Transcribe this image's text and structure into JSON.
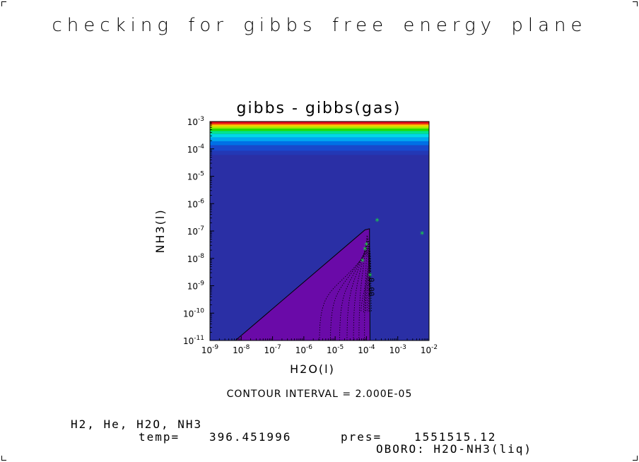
{
  "page": {
    "title": "checking for gibbs free energy plane",
    "contour_interval": "CONTOUR INTERVAL = 2.000E-05",
    "species": "H2, He, H2O, NH3",
    "temp_label": "temp=",
    "temp_value": "396.451996",
    "pres_label": "pres=",
    "pres_value": "1551515.12",
    "source": "OBORO: H2O-NH3(liq)"
  },
  "chart_data": {
    "type": "heatmap",
    "title": "gibbs - gibbs(gas)",
    "xlabel": "H2O(l)",
    "ylabel": "NH3(l)",
    "x_scale": "log",
    "y_scale": "log",
    "xlim": [
      1e-09,
      0.01
    ],
    "ylim": [
      1e-11,
      0.001
    ],
    "x_ticks": [
      {
        "value": 1e-09,
        "mant": "10",
        "exp": "-9"
      },
      {
        "value": 1e-08,
        "mant": "10",
        "exp": "-8"
      },
      {
        "value": 1e-07,
        "mant": "10",
        "exp": "-7"
      },
      {
        "value": 1e-06,
        "mant": "10",
        "exp": "-6"
      },
      {
        "value": 1e-05,
        "mant": "10",
        "exp": "-5"
      },
      {
        "value": 0.0001,
        "mant": "10",
        "exp": "-4"
      },
      {
        "value": 0.001,
        "mant": "10",
        "exp": "-3"
      },
      {
        "value": 0.01,
        "mant": "10",
        "exp": "-2"
      }
    ],
    "y_ticks": [
      {
        "value": 1e-11,
        "mant": "10",
        "exp": "-11"
      },
      {
        "value": 1e-10,
        "mant": "10",
        "exp": "-10"
      },
      {
        "value": 1e-09,
        "mant": "10",
        "exp": "-9"
      },
      {
        "value": 1e-08,
        "mant": "10",
        "exp": "-8"
      },
      {
        "value": 1e-07,
        "mant": "10",
        "exp": "-7"
      },
      {
        "value": 1e-06,
        "mant": "10",
        "exp": "-6"
      },
      {
        "value": 1e-05,
        "mant": "10",
        "exp": "-5"
      },
      {
        "value": 0.0001,
        "mant": "10",
        "exp": "-4"
      },
      {
        "value": 0.001,
        "mant": "10",
        "exp": "-3"
      }
    ],
    "background_color": "#2a2fa5",
    "top_bands": [
      {
        "y_top": 0.001,
        "y_bottom": 0.00083,
        "color": "#e6001a"
      },
      {
        "y_top": 0.00083,
        "y_bottom": 0.00074,
        "color": "#ff7a00"
      },
      {
        "y_top": 0.00074,
        "y_bottom": 0.00066,
        "color": "#ffd800"
      },
      {
        "y_top": 0.00066,
        "y_bottom": 0.00055,
        "color": "#a8e800"
      },
      {
        "y_top": 0.00055,
        "y_bottom": 0.00045,
        "color": "#25e000"
      },
      {
        "y_top": 0.00045,
        "y_bottom": 0.00035,
        "color": "#00e58f"
      },
      {
        "y_top": 0.00035,
        "y_bottom": 0.00026,
        "color": "#00d8e8"
      },
      {
        "y_top": 0.00026,
        "y_bottom": 0.00019,
        "color": "#00a8f0"
      },
      {
        "y_top": 0.00019,
        "y_bottom": 0.000135,
        "color": "#0070e6"
      },
      {
        "y_top": 0.000135,
        "y_bottom": 8.5e-05,
        "color": "#1848cc"
      },
      {
        "y_top": 8.5e-05,
        "y_bottom": 6e-05,
        "color": "#2338b5"
      }
    ],
    "region": {
      "color": "#6a0aa8",
      "boundary": [
        [
          6.5e-09,
          1e-11
        ],
        [
          9e-05,
          1.1e-07
        ],
        [
          0.000125,
          1.2e-07
        ],
        [
          0.00013,
          1e-11
        ]
      ]
    },
    "contour_label": "0.00",
    "points": [
      {
        "x": 0.00022,
        "y": 2.2e-07
      },
      {
        "x": 0.006,
        "y": 7.5e-08
      },
      {
        "x": 0.0001,
        "y": 3e-08
      },
      {
        "x": 9e-05,
        "y": 2e-08
      },
      {
        "x": 7.5e-05,
        "y": 7.5e-09
      },
      {
        "x": 0.00013,
        "y": 2.2e-09
      }
    ],
    "point_color": "#18e040"
  }
}
